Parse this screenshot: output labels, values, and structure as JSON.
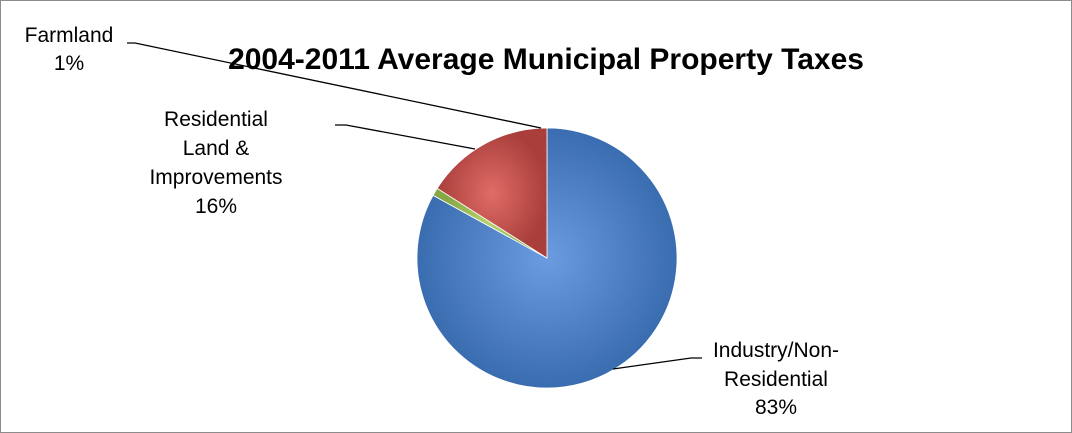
{
  "chart_data": {
    "type": "pie",
    "title": "2004-2011 Average Municipal Property Taxes",
    "slices": [
      {
        "label_lines": [
          "Industry/Non-",
          "Residential"
        ],
        "value": 83,
        "pct_label": "83%",
        "color": "#4a7ebf"
      },
      {
        "label_lines": [
          "Farmland"
        ],
        "value": 1,
        "pct_label": "1%",
        "color": "#9bbb59"
      },
      {
        "label_lines": [
          "Residential",
          "Land &",
          "Improvements"
        ],
        "value": 16,
        "pct_label": "16%",
        "color": "#c0504d"
      }
    ],
    "legend": "none"
  }
}
